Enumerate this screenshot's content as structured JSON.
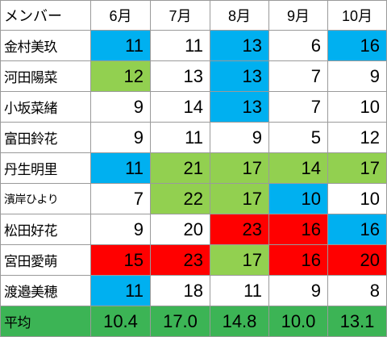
{
  "header": {
    "member_label": "メンバー",
    "months": [
      "6月",
      "7月",
      "8月",
      "9月",
      "10月"
    ]
  },
  "colors": {
    "blue": "#00b0f0",
    "green": "#92d050",
    "red": "#ff0000",
    "average_row": "#3cb455"
  },
  "rows": [
    {
      "name": "金村美玖",
      "values": [
        "11",
        "11",
        "13",
        "6",
        "16"
      ],
      "fills": [
        "blue",
        "none",
        "blue",
        "none",
        "blue"
      ]
    },
    {
      "name": "河田陽菜",
      "values": [
        "12",
        "13",
        "13",
        "7",
        "9"
      ],
      "fills": [
        "green",
        "none",
        "blue",
        "none",
        "none"
      ]
    },
    {
      "name": "小坂菜緒",
      "values": [
        "9",
        "14",
        "13",
        "7",
        "10"
      ],
      "fills": [
        "none",
        "none",
        "blue",
        "none",
        "none"
      ]
    },
    {
      "name": "富田鈴花",
      "values": [
        "9",
        "11",
        "9",
        "5",
        "12"
      ],
      "fills": [
        "none",
        "none",
        "none",
        "none",
        "none"
      ]
    },
    {
      "name": "丹生明里",
      "values": [
        "11",
        "21",
        "17",
        "14",
        "17"
      ],
      "fills": [
        "blue",
        "green",
        "green",
        "green",
        "green"
      ]
    },
    {
      "name": "濱岸ひより",
      "values": [
        "7",
        "22",
        "17",
        "10",
        "10"
      ],
      "fills": [
        "none",
        "green",
        "green",
        "blue",
        "none"
      ]
    },
    {
      "name": "松田好花",
      "values": [
        "9",
        "20",
        "23",
        "16",
        "16"
      ],
      "fills": [
        "none",
        "none",
        "red",
        "red",
        "blue"
      ]
    },
    {
      "name": "宮田愛萌",
      "values": [
        "15",
        "23",
        "17",
        "16",
        "20"
      ],
      "fills": [
        "red",
        "red",
        "green",
        "red",
        "red"
      ]
    },
    {
      "name": "渡邉美穂",
      "values": [
        "11",
        "18",
        "11",
        "9",
        "8"
      ],
      "fills": [
        "blue",
        "none",
        "none",
        "none",
        "none"
      ]
    }
  ],
  "average": {
    "label": "平均",
    "values": [
      "10.4",
      "17.0",
      "14.8",
      "10.0",
      "13.1"
    ]
  }
}
